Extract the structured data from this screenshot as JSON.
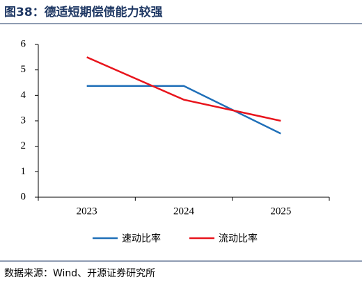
{
  "chart_data": {
    "type": "line",
    "title": "图38：德适短期偿债能力较强",
    "categories": [
      "2023",
      "2024",
      "2025"
    ],
    "series": [
      {
        "name": "速动比率",
        "color": "#1f6fb8",
        "values": [
          4.37,
          4.37,
          2.5
        ]
      },
      {
        "name": "流动比率",
        "color": "#e8141c",
        "values": [
          5.5,
          3.83,
          3.0
        ]
      }
    ],
    "ylim": [
      0,
      6
    ],
    "yticks": [
      0,
      1,
      2,
      3,
      4,
      5,
      6
    ],
    "source": "数据来源：Wind、开源证券研究所"
  }
}
